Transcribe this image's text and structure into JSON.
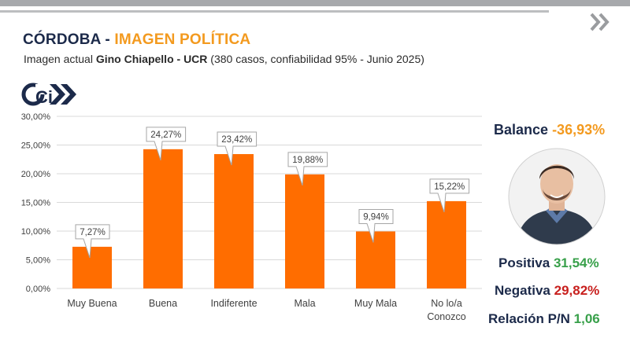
{
  "header": {
    "title_main": "CÓRDOBA - ",
    "title_accent": "IMAGEN POLÍTICA",
    "subtitle_pre": "Imagen actual ",
    "subtitle_bold": "Gino Chiapello - UCR",
    "subtitle_post": " (380 casos, confiabilidad 95% - Junio 2025)"
  },
  "logo": {
    "text": "Ci",
    "icon": "ci-logo-icon"
  },
  "colors": {
    "bar": "#ff6d00",
    "title": "#1c2a4a",
    "accent": "#f39a1f",
    "positive": "#38a04a",
    "negative": "#c8201e"
  },
  "chart_data": {
    "type": "bar",
    "categories": [
      [
        "Muy Buena"
      ],
      [
        "Buena"
      ],
      [
        "Indiferente"
      ],
      [
        "Mala"
      ],
      [
        "Muy Mala"
      ],
      [
        "No lo/a",
        "Conozco"
      ]
    ],
    "values": [
      7.27,
      24.27,
      23.42,
      19.88,
      9.94,
      15.22
    ],
    "data_labels": [
      "7,27%",
      "24,27%",
      "23,42%",
      "19,88%",
      "9,94%",
      "15,22%"
    ],
    "yticks": [
      "0,00%",
      "5,00%",
      "10,00%",
      "15,00%",
      "20,00%",
      "25,00%",
      "30,00%"
    ],
    "ylim": [
      0,
      30
    ],
    "grid": true,
    "title": "",
    "xlabel": "",
    "ylabel": ""
  },
  "summary": {
    "balance_label": "Balance",
    "balance_value": "-36,93%",
    "positiva_label": "Positiva",
    "positiva_value": "31,54%",
    "negativa_label": "Negativa",
    "negativa_value": "29,82%",
    "relacion_label": "Relación P/N",
    "relacion_value": "1,06"
  },
  "photo": {
    "icon": "candidate-portrait"
  }
}
